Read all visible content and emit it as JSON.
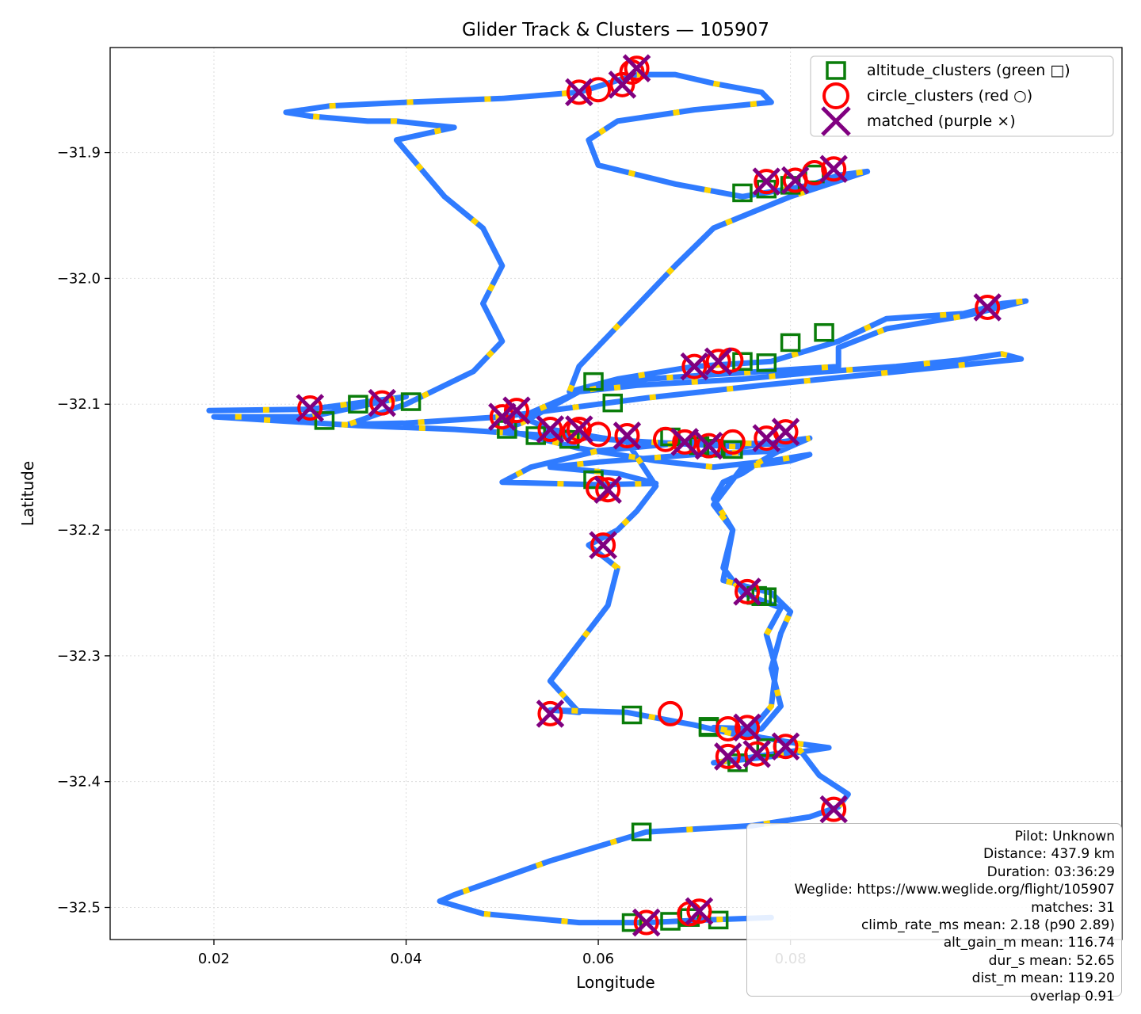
{
  "chart_data": {
    "type": "scatter",
    "title": "Glider Track & Clusters — 105907",
    "xlabel": "Longitude",
    "ylabel": "Latitude",
    "xlim": [
      0.0092,
      0.1145
    ],
    "ylim": [
      -32.5255,
      -31.8165
    ],
    "xticks": [
      0.02,
      0.04,
      0.06,
      0.08
    ],
    "xtick_labels": [
      "0.02",
      "0.04",
      "0.06",
      "0.08"
    ],
    "yticks": [
      -31.9,
      -32.0,
      -32.1,
      -32.2,
      -32.3,
      -32.4,
      -32.5
    ],
    "ytick_labels": [
      "−31.9",
      "−32.0",
      "−32.1",
      "−32.2",
      "−32.3",
      "−32.4",
      "−32.5"
    ],
    "grid": true,
    "legend_position": "top-right",
    "colors": {
      "track": "#2f7bff",
      "track_highlight": "#ffd500",
      "altitude_clusters": "#0a7d0a",
      "circle_clusters": "#ff0000",
      "matched": "#800080",
      "grid": "#dddddd"
    },
    "series": [
      {
        "name": "track",
        "style": "line",
        "points": [
          [
            0.0195,
            -32.105
          ],
          [
            0.03,
            -32.104
          ],
          [
            0.04,
            -32.094
          ],
          [
            0.03,
            -32.11
          ],
          [
            0.02,
            -32.11
          ],
          [
            0.035,
            -32.117
          ],
          [
            0.045,
            -32.12
          ],
          [
            0.055,
            -32.125
          ],
          [
            0.065,
            -32.13
          ],
          [
            0.075,
            -32.134
          ],
          [
            0.082,
            -32.127
          ],
          [
            0.079,
            -32.137
          ],
          [
            0.07,
            -32.14
          ],
          [
            0.06,
            -32.146
          ],
          [
            0.055,
            -32.15
          ],
          [
            0.062,
            -32.155
          ],
          [
            0.066,
            -32.163
          ],
          [
            0.06,
            -32.164
          ],
          [
            0.05,
            -32.162
          ],
          [
            0.053,
            -32.15
          ],
          [
            0.06,
            -32.137
          ],
          [
            0.07,
            -32.13
          ],
          [
            0.08,
            -32.132
          ],
          [
            0.077,
            -32.145
          ],
          [
            0.075,
            -32.155
          ],
          [
            0.073,
            -32.162
          ],
          [
            0.072,
            -32.175
          ],
          [
            0.074,
            -32.2
          ],
          [
            0.073,
            -32.24
          ],
          [
            0.078,
            -32.25
          ],
          [
            0.08,
            -32.265
          ],
          [
            0.079,
            -32.282
          ],
          [
            0.078,
            -32.31
          ],
          [
            0.079,
            -32.34
          ],
          [
            0.077,
            -32.358
          ],
          [
            0.074,
            -32.362
          ],
          [
            0.07,
            -32.355
          ],
          [
            0.063,
            -32.345
          ],
          [
            0.055,
            -32.343
          ],
          [
            0.058,
            -32.345
          ],
          [
            0.055,
            -32.32
          ],
          [
            0.058,
            -32.29
          ],
          [
            0.061,
            -32.26
          ],
          [
            0.062,
            -32.23
          ],
          [
            0.059,
            -32.212
          ],
          [
            0.062,
            -32.2
          ],
          [
            0.064,
            -32.185
          ],
          [
            0.066,
            -32.165
          ],
          [
            0.063,
            -32.13
          ],
          [
            0.055,
            -32.12
          ],
          [
            0.052,
            -32.11
          ],
          [
            0.058,
            -32.09
          ],
          [
            0.064,
            -32.085
          ],
          [
            0.075,
            -32.08
          ],
          [
            0.082,
            -32.075
          ],
          [
            0.091,
            -32.07
          ],
          [
            0.0975,
            -32.065
          ],
          [
            0.102,
            -32.06
          ],
          [
            0.104,
            -32.064
          ],
          [
            0.09,
            -32.075
          ],
          [
            0.077,
            -32.085
          ],
          [
            0.065,
            -32.095
          ],
          [
            0.06,
            -32.1
          ],
          [
            0.05,
            -32.11
          ],
          [
            0.04,
            -32.115
          ],
          [
            0.034,
            -32.116
          ],
          [
            0.04,
            -32.1
          ],
          [
            0.047,
            -32.074
          ],
          [
            0.05,
            -32.05
          ],
          [
            0.048,
            -32.02
          ],
          [
            0.05,
            -31.99
          ],
          [
            0.048,
            -31.96
          ],
          [
            0.044,
            -31.935
          ],
          [
            0.039,
            -31.89
          ],
          [
            0.045,
            -31.88
          ],
          [
            0.039,
            -31.875
          ],
          [
            0.036,
            -31.875
          ],
          [
            0.03,
            -31.871
          ],
          [
            0.0275,
            -31.868
          ],
          [
            0.032,
            -31.863
          ],
          [
            0.04,
            -31.86
          ],
          [
            0.05,
            -31.857
          ],
          [
            0.058,
            -31.852
          ],
          [
            0.064,
            -31.838
          ],
          [
            0.068,
            -31.838
          ],
          [
            0.072,
            -31.845
          ],
          [
            0.077,
            -31.852
          ],
          [
            0.078,
            -31.86
          ],
          [
            0.07,
            -31.866
          ],
          [
            0.062,
            -31.875
          ],
          [
            0.059,
            -31.89
          ],
          [
            0.06,
            -31.91
          ],
          [
            0.068,
            -31.925
          ],
          [
            0.075,
            -31.935
          ],
          [
            0.082,
            -31.926
          ],
          [
            0.085,
            -31.918
          ],
          [
            0.088,
            -31.915
          ],
          [
            0.08,
            -31.935
          ],
          [
            0.072,
            -31.96
          ],
          [
            0.068,
            -31.99
          ],
          [
            0.063,
            -32.03
          ],
          [
            0.058,
            -32.07
          ],
          [
            0.057,
            -32.09
          ],
          [
            0.062,
            -32.08
          ],
          [
            0.07,
            -32.07
          ],
          [
            0.078,
            -32.066
          ],
          [
            0.085,
            -32.05
          ],
          [
            0.09,
            -32.032
          ],
          [
            0.098,
            -32.028
          ],
          [
            0.102,
            -32.02
          ],
          [
            0.1045,
            -32.018
          ],
          [
            0.098,
            -32.03
          ],
          [
            0.09,
            -32.04
          ],
          [
            0.085,
            -32.055
          ],
          [
            0.085,
            -32.07
          ],
          [
            0.075,
            -32.075
          ],
          [
            0.065,
            -32.08
          ],
          [
            0.058,
            -32.09
          ],
          [
            0.052,
            -32.115
          ],
          [
            0.05,
            -32.12
          ],
          [
            0.058,
            -32.135
          ],
          [
            0.066,
            -32.145
          ],
          [
            0.072,
            -32.15
          ],
          [
            0.078,
            -32.145
          ],
          [
            0.082,
            -32.14
          ],
          [
            0.08,
            -32.145
          ],
          [
            0.075,
            -32.15
          ],
          [
            0.072,
            -32.18
          ],
          [
            0.074,
            -32.2
          ],
          [
            0.073,
            -32.23
          ],
          [
            0.075,
            -32.25
          ],
          [
            0.079,
            -32.262
          ],
          [
            0.0775,
            -32.283
          ],
          [
            0.0785,
            -32.31
          ],
          [
            0.078,
            -32.34
          ],
          [
            0.076,
            -32.358
          ],
          [
            0.072,
            -32.357
          ],
          [
            0.077,
            -32.365
          ],
          [
            0.081,
            -32.37
          ],
          [
            0.084,
            -32.373
          ],
          [
            0.078,
            -32.38
          ],
          [
            0.072,
            -32.385
          ],
          [
            0.081,
            -32.375
          ],
          [
            0.083,
            -32.395
          ],
          [
            0.086,
            -32.41
          ],
          [
            0.085,
            -32.42
          ],
          [
            0.082,
            -32.428
          ],
          [
            0.076,
            -32.435
          ],
          [
            0.065,
            -32.44
          ],
          [
            0.055,
            -32.463
          ],
          [
            0.045,
            -32.49
          ],
          [
            0.0435,
            -32.495
          ],
          [
            0.048,
            -32.505
          ],
          [
            0.058,
            -32.512
          ],
          [
            0.065,
            -32.512
          ],
          [
            0.071,
            -32.51
          ],
          [
            0.078,
            -32.508
          ]
        ]
      },
      {
        "name": "altitude_clusters (green □)",
        "style": "square",
        "points": [
          [
            0.0315,
            -32.113
          ],
          [
            0.035,
            -32.1
          ],
          [
            0.0405,
            -32.098
          ],
          [
            0.0505,
            -32.12
          ],
          [
            0.0535,
            -32.125
          ],
          [
            0.057,
            -32.128
          ],
          [
            0.0595,
            -32.082
          ],
          [
            0.0595,
            -32.16
          ],
          [
            0.0615,
            -32.099
          ],
          [
            0.0675,
            -32.126
          ],
          [
            0.0705,
            -32.133
          ],
          [
            0.072,
            -32.135
          ],
          [
            0.075,
            -32.066
          ],
          [
            0.0775,
            -32.067
          ],
          [
            0.08,
            -32.051
          ],
          [
            0.0835,
            -32.043
          ],
          [
            0.075,
            -31.932
          ],
          [
            0.0775,
            -31.929
          ],
          [
            0.08,
            -31.926
          ],
          [
            0.0825,
            -31.917
          ],
          [
            0.074,
            -32.136
          ],
          [
            0.0635,
            -32.347
          ],
          [
            0.0715,
            -32.356
          ],
          [
            0.0775,
            -32.373
          ],
          [
            0.0765,
            -32.252
          ],
          [
            0.077,
            -32.253
          ],
          [
            0.0745,
            -32.385
          ],
          [
            0.0675,
            -32.511
          ],
          [
            0.0695,
            -32.508
          ],
          [
            0.0725,
            -32.51
          ],
          [
            0.0635,
            -32.512
          ],
          [
            0.0645,
            -32.44
          ],
          [
            0.0715,
            -32.357
          ],
          [
            0.0775,
            -32.253
          ]
        ]
      },
      {
        "name": "circle_clusters (red ○)",
        "style": "circle",
        "points": [
          [
            0.03,
            -32.103
          ],
          [
            0.0375,
            -32.099
          ],
          [
            0.05,
            -32.11
          ],
          [
            0.0515,
            -32.105
          ],
          [
            0.055,
            -32.12
          ],
          [
            0.058,
            -32.12
          ],
          [
            0.06,
            -32.124
          ],
          [
            0.063,
            -32.125
          ],
          [
            0.067,
            -32.128
          ],
          [
            0.069,
            -32.13
          ],
          [
            0.0715,
            -32.133
          ],
          [
            0.074,
            -32.13
          ],
          [
            0.0775,
            -32.127
          ],
          [
            0.0795,
            -32.122
          ],
          [
            0.06,
            -32.167
          ],
          [
            0.061,
            -32.168
          ],
          [
            0.0575,
            -32.122
          ],
          [
            0.07,
            -32.07
          ],
          [
            0.0725,
            -32.066
          ],
          [
            0.0738,
            -32.065
          ],
          [
            0.1005,
            -32.023
          ],
          [
            0.058,
            -31.852
          ],
          [
            0.06,
            -31.85
          ],
          [
            0.0625,
            -31.846
          ],
          [
            0.064,
            -31.833
          ],
          [
            0.0635,
            -31.836
          ],
          [
            0.0775,
            -31.923
          ],
          [
            0.0805,
            -31.922
          ],
          [
            0.0825,
            -31.916
          ],
          [
            0.0845,
            -31.913
          ],
          [
            0.0605,
            -32.212
          ],
          [
            0.0755,
            -32.249
          ],
          [
            0.055,
            -32.346
          ],
          [
            0.0675,
            -32.346
          ],
          [
            0.0735,
            -32.38
          ],
          [
            0.0755,
            -32.357
          ],
          [
            0.0765,
            -32.378
          ],
          [
            0.0795,
            -32.372
          ],
          [
            0.0845,
            -32.422
          ],
          [
            0.065,
            -32.512
          ],
          [
            0.0695,
            -32.505
          ],
          [
            0.0705,
            -32.503
          ],
          [
            0.0735,
            -32.358
          ]
        ]
      },
      {
        "name": "matched (purple ×)",
        "style": "x",
        "points": [
          [
            0.03,
            -32.103
          ],
          [
            0.0375,
            -32.099
          ],
          [
            0.05,
            -32.11
          ],
          [
            0.0515,
            -32.105
          ],
          [
            0.055,
            -32.12
          ],
          [
            0.058,
            -32.12
          ],
          [
            0.063,
            -32.125
          ],
          [
            0.069,
            -32.13
          ],
          [
            0.0715,
            -32.133
          ],
          [
            0.0775,
            -32.127
          ],
          [
            0.0795,
            -32.122
          ],
          [
            0.061,
            -32.168
          ],
          [
            0.07,
            -32.07
          ],
          [
            0.0725,
            -32.066
          ],
          [
            0.1005,
            -32.023
          ],
          [
            0.058,
            -31.852
          ],
          [
            0.0625,
            -31.846
          ],
          [
            0.064,
            -31.833
          ],
          [
            0.0775,
            -31.923
          ],
          [
            0.0805,
            -31.922
          ],
          [
            0.0845,
            -31.913
          ],
          [
            0.0605,
            -32.212
          ],
          [
            0.0755,
            -32.249
          ],
          [
            0.055,
            -32.346
          ],
          [
            0.0735,
            -32.38
          ],
          [
            0.0755,
            -32.357
          ],
          [
            0.0795,
            -32.372
          ],
          [
            0.0845,
            -32.422
          ],
          [
            0.065,
            -32.512
          ],
          [
            0.0705,
            -32.503
          ],
          [
            0.0765,
            -32.378
          ]
        ]
      }
    ],
    "info_box": {
      "lines": [
        "Pilot: Unknown",
        "Distance: 437.9 km",
        "Duration: 03:36:29",
        "Weglide: https://www.weglide.org/flight/105907",
        "matches: 31",
        "climb_rate_ms mean: 2.18 (p90 2.89)",
        "alt_gain_m mean: 116.74",
        "dur_s mean: 52.65",
        "dist_m mean: 119.20",
        "overlap 0.91"
      ]
    }
  }
}
